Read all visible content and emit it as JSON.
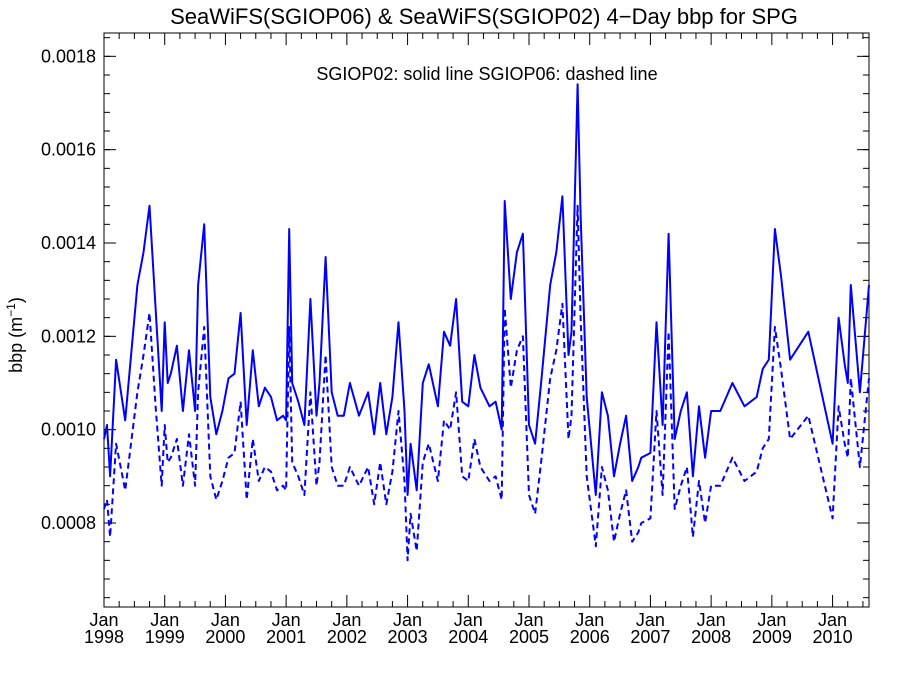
{
  "chart_data": {
    "type": "line",
    "title": "SeaWiFS(SGIOP06) & SeaWiFS(SGIOP02) 4−Day bbp for SPG",
    "xlabel": "",
    "ylabel": "bbp (m",
    "ylabel_superscript": "−1",
    "ylabel_close": ")",
    "annotation": "SGIOP02: solid line   SGIOP06: dashed line",
    "xlim": [
      1998.0,
      2010.6
    ],
    "ylim": [
      0.00062,
      0.00185
    ],
    "yticks": [
      0.0008,
      0.001,
      0.0012,
      0.0014,
      0.0016,
      0.0018
    ],
    "ytick_labels": [
      "0.0008",
      "0.0010",
      "0.0012",
      "0.0014",
      "0.0016",
      "0.0018"
    ],
    "xticks": [
      1998,
      1999,
      2000,
      2001,
      2002,
      2003,
      2004,
      2005,
      2006,
      2007,
      2008,
      2009,
      2010
    ],
    "xtick_month": "Jan",
    "xtick_years": [
      "1998",
      "1999",
      "2000",
      "2001",
      "2002",
      "2003",
      "2004",
      "2005",
      "2006",
      "2007",
      "2008",
      "2009",
      "2010"
    ],
    "line_color": "#0000ff",
    "series": [
      {
        "name": "SGIOP02",
        "style": "solid",
        "x": [
          1998.0,
          1998.05,
          1998.1,
          1998.2,
          1998.35,
          1998.55,
          1998.65,
          1998.75,
          1998.85,
          1998.95,
          1999.0,
          1999.05,
          1999.1,
          1999.2,
          1999.3,
          1999.4,
          1999.5,
          1999.55,
          1999.65,
          1999.75,
          1999.85,
          1999.95,
          2000.05,
          2000.15,
          2000.25,
          2000.35,
          2000.45,
          2000.55,
          2000.65,
          2000.75,
          2000.85,
          2000.95,
          2001.0,
          2001.05,
          2001.1,
          2001.2,
          2001.3,
          2001.4,
          2001.5,
          2001.55,
          2001.65,
          2001.75,
          2001.85,
          2001.95,
          2002.05,
          2002.2,
          2002.35,
          2002.45,
          2002.55,
          2002.65,
          2002.75,
          2002.85,
          2002.95,
          2003.0,
          2003.05,
          2003.15,
          2003.25,
          2003.35,
          2003.5,
          2003.6,
          2003.7,
          2003.8,
          2003.9,
          2004.0,
          2004.1,
          2004.2,
          2004.35,
          2004.45,
          2004.55,
          2004.6,
          2004.7,
          2004.8,
          2004.9,
          2005.0,
          2005.1,
          2005.2,
          2005.35,
          2005.45,
          2005.55,
          2005.65,
          2005.7,
          2005.8,
          2005.85,
          2005.95,
          2006.1,
          2006.2,
          2006.3,
          2006.4,
          2006.5,
          2006.6,
          2006.7,
          2006.8,
          2006.85,
          2007.0,
          2007.1,
          2007.2,
          2007.3,
          2007.4,
          2007.5,
          2007.6,
          2007.7,
          2007.8,
          2007.9,
          2008.0,
          2008.15,
          2008.35,
          2008.55,
          2008.75,
          2008.85,
          2008.95,
          2009.05,
          2009.15,
          2009.3,
          2009.6,
          2010.0,
          2010.1,
          2010.2,
          2010.25,
          2010.3,
          2010.45,
          2010.6
        ],
        "y": [
          0.00098,
          0.00101,
          0.0009,
          0.00115,
          0.00102,
          0.00131,
          0.00138,
          0.00148,
          0.00126,
          0.00104,
          0.00123,
          0.0011,
          0.00112,
          0.00118,
          0.00104,
          0.00117,
          0.00104,
          0.00131,
          0.00144,
          0.00107,
          0.00099,
          0.00104,
          0.00111,
          0.00112,
          0.00125,
          0.00101,
          0.00117,
          0.00105,
          0.00109,
          0.00107,
          0.00102,
          0.00103,
          0.00102,
          0.00143,
          0.0011,
          0.00106,
          0.00101,
          0.00128,
          0.00103,
          0.0011,
          0.00137,
          0.00108,
          0.00103,
          0.00103,
          0.0011,
          0.00103,
          0.00108,
          0.00099,
          0.0011,
          0.00099,
          0.00107,
          0.00123,
          0.00104,
          0.00086,
          0.00097,
          0.00087,
          0.0011,
          0.00114,
          0.00105,
          0.00121,
          0.00118,
          0.00128,
          0.00106,
          0.00105,
          0.00116,
          0.00109,
          0.00105,
          0.00106,
          0.001,
          0.00149,
          0.00128,
          0.00138,
          0.00142,
          0.00101,
          0.00097,
          0.0011,
          0.00131,
          0.00138,
          0.0015,
          0.00116,
          0.00121,
          0.00174,
          0.00146,
          0.00107,
          0.00086,
          0.00108,
          0.00103,
          0.0009,
          0.00097,
          0.00103,
          0.00089,
          0.00092,
          0.00094,
          0.00095,
          0.00123,
          0.00101,
          0.00142,
          0.00098,
          0.00104,
          0.00108,
          0.0009,
          0.00105,
          0.00094,
          0.00104,
          0.00104,
          0.0011,
          0.00105,
          0.00107,
          0.00113,
          0.00115,
          0.00143,
          0.00133,
          0.00115,
          0.00121,
          0.00097,
          0.00124,
          0.00114,
          0.0011,
          0.00131,
          0.00108,
          0.00131
        ]
      },
      {
        "name": "SGIOP06",
        "style": "dashed",
        "x": [
          1998.0,
          1998.05,
          1998.1,
          1998.2,
          1998.35,
          1998.55,
          1998.65,
          1998.75,
          1998.85,
          1998.95,
          1999.0,
          1999.05,
          1999.1,
          1999.2,
          1999.3,
          1999.4,
          1999.5,
          1999.55,
          1999.65,
          1999.75,
          1999.85,
          1999.95,
          2000.05,
          2000.15,
          2000.25,
          2000.35,
          2000.45,
          2000.55,
          2000.65,
          2000.75,
          2000.85,
          2000.95,
          2001.0,
          2001.05,
          2001.1,
          2001.2,
          2001.3,
          2001.4,
          2001.5,
          2001.55,
          2001.65,
          2001.75,
          2001.85,
          2001.95,
          2002.05,
          2002.2,
          2002.35,
          2002.45,
          2002.55,
          2002.65,
          2002.75,
          2002.85,
          2002.95,
          2003.0,
          2003.05,
          2003.15,
          2003.25,
          2003.35,
          2003.5,
          2003.6,
          2003.7,
          2003.8,
          2003.9,
          2004.0,
          2004.1,
          2004.2,
          2004.35,
          2004.45,
          2004.55,
          2004.6,
          2004.7,
          2004.8,
          2004.9,
          2005.0,
          2005.1,
          2005.2,
          2005.35,
          2005.45,
          2005.55,
          2005.65,
          2005.7,
          2005.8,
          2005.85,
          2005.95,
          2006.1,
          2006.2,
          2006.3,
          2006.4,
          2006.5,
          2006.6,
          2006.7,
          2006.8,
          2006.85,
          2007.0,
          2007.1,
          2007.2,
          2007.3,
          2007.4,
          2007.5,
          2007.6,
          2007.7,
          2007.8,
          2007.9,
          2008.0,
          2008.15,
          2008.35,
          2008.55,
          2008.75,
          2008.85,
          2008.95,
          2009.05,
          2009.15,
          2009.3,
          2009.6,
          2010.0,
          2010.1,
          2010.2,
          2010.25,
          2010.3,
          2010.45,
          2010.6
        ],
        "y": [
          0.00083,
          0.00085,
          0.00077,
          0.00097,
          0.00087,
          0.00108,
          0.00116,
          0.00125,
          0.00105,
          0.00088,
          0.00101,
          0.00093,
          0.00094,
          0.00098,
          0.00088,
          0.00099,
          0.00088,
          0.00108,
          0.00122,
          0.0009,
          0.00085,
          0.00089,
          0.00094,
          0.00095,
          0.00106,
          0.00085,
          0.00098,
          0.00089,
          0.00092,
          0.00091,
          0.00087,
          0.00088,
          0.00087,
          0.00122,
          0.00093,
          0.0009,
          0.00086,
          0.00108,
          0.00088,
          0.00093,
          0.00116,
          0.00092,
          0.00088,
          0.00088,
          0.00092,
          0.00088,
          0.00092,
          0.00084,
          0.00093,
          0.00084,
          0.00091,
          0.00104,
          0.00089,
          0.00072,
          0.00082,
          0.00074,
          0.00093,
          0.00097,
          0.00089,
          0.00102,
          0.001,
          0.00108,
          0.0009,
          0.00089,
          0.00098,
          0.00092,
          0.00089,
          0.0009,
          0.00085,
          0.00126,
          0.00109,
          0.00117,
          0.0012,
          0.00086,
          0.00082,
          0.00093,
          0.00111,
          0.00117,
          0.00127,
          0.00098,
          0.00103,
          0.00148,
          0.00124,
          0.0009,
          0.00075,
          0.00092,
          0.00087,
          0.00076,
          0.00082,
          0.00087,
          0.00076,
          0.00078,
          0.0008,
          0.00081,
          0.00104,
          0.00086,
          0.00121,
          0.00083,
          0.00088,
          0.00092,
          0.00077,
          0.00089,
          0.0008,
          0.00088,
          0.00088,
          0.00094,
          0.00089,
          0.00091,
          0.00096,
          0.00098,
          0.00122,
          0.00113,
          0.00098,
          0.00103,
          0.00081,
          0.00105,
          0.00097,
          0.00094,
          0.00111,
          0.00092,
          0.00111
        ]
      }
    ],
    "grid": false,
    "legend": "annotation-top-center"
  }
}
